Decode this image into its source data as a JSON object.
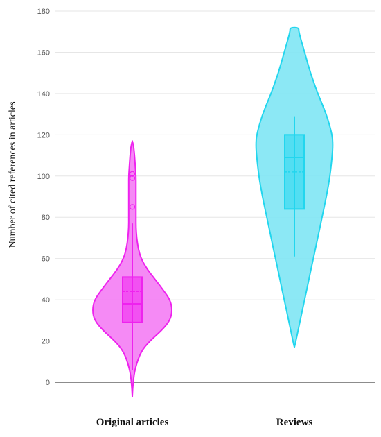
{
  "chart_data": {
    "type": "violin",
    "ylabel": "Number of cited references in articles",
    "ylim": [
      -8,
      180
    ],
    "yticks": [
      0,
      20,
      40,
      60,
      80,
      100,
      120,
      140,
      160,
      180
    ],
    "grid": true,
    "categories": [
      "Original articles",
      "Reviews"
    ],
    "series": [
      {
        "category": "Original articles",
        "color": "#ee22ee",
        "fill": "#f47df4",
        "density": {
          "y": [
            -7,
            0,
            7,
            15,
            20,
            25,
            30,
            35,
            40,
            45,
            50,
            55,
            60,
            65,
            70,
            75,
            80,
            85,
            90,
            95,
            100,
            105,
            110,
            114,
            117
          ],
          "width": [
            0,
            1,
            4,
            12,
            24,
            40,
            52,
            55,
            52,
            42,
            31,
            20,
            12,
            8,
            6,
            5,
            5,
            5,
            5,
            5,
            5,
            4,
            3,
            2,
            0
          ]
        },
        "box": {
          "whisker_low": 6,
          "q1": 29,
          "median": 38,
          "mean": 44,
          "q3": 51,
          "whisker_high": 77
        },
        "outliers": [
          85,
          99,
          101
        ]
      },
      {
        "category": "Reviews",
        "color": "#22d6ee",
        "fill": "#7fe6f4",
        "density": {
          "y": [
            17,
            20,
            25,
            30,
            40,
            50,
            60,
            70,
            80,
            90,
            100,
            110,
            115,
            120,
            130,
            140,
            150,
            160,
            165,
            170,
            172
          ],
          "width": [
            0,
            2,
            5,
            8,
            14,
            20,
            26,
            32,
            38,
            44,
            49,
            52,
            53,
            52,
            44,
            32,
            22,
            14,
            10,
            6,
            6
          ]
        },
        "box": {
          "whisker_low": 61,
          "q1": 84,
          "median": 109,
          "mean": 102,
          "q3": 120,
          "whisker_high": 129
        },
        "outliers": []
      }
    ]
  }
}
